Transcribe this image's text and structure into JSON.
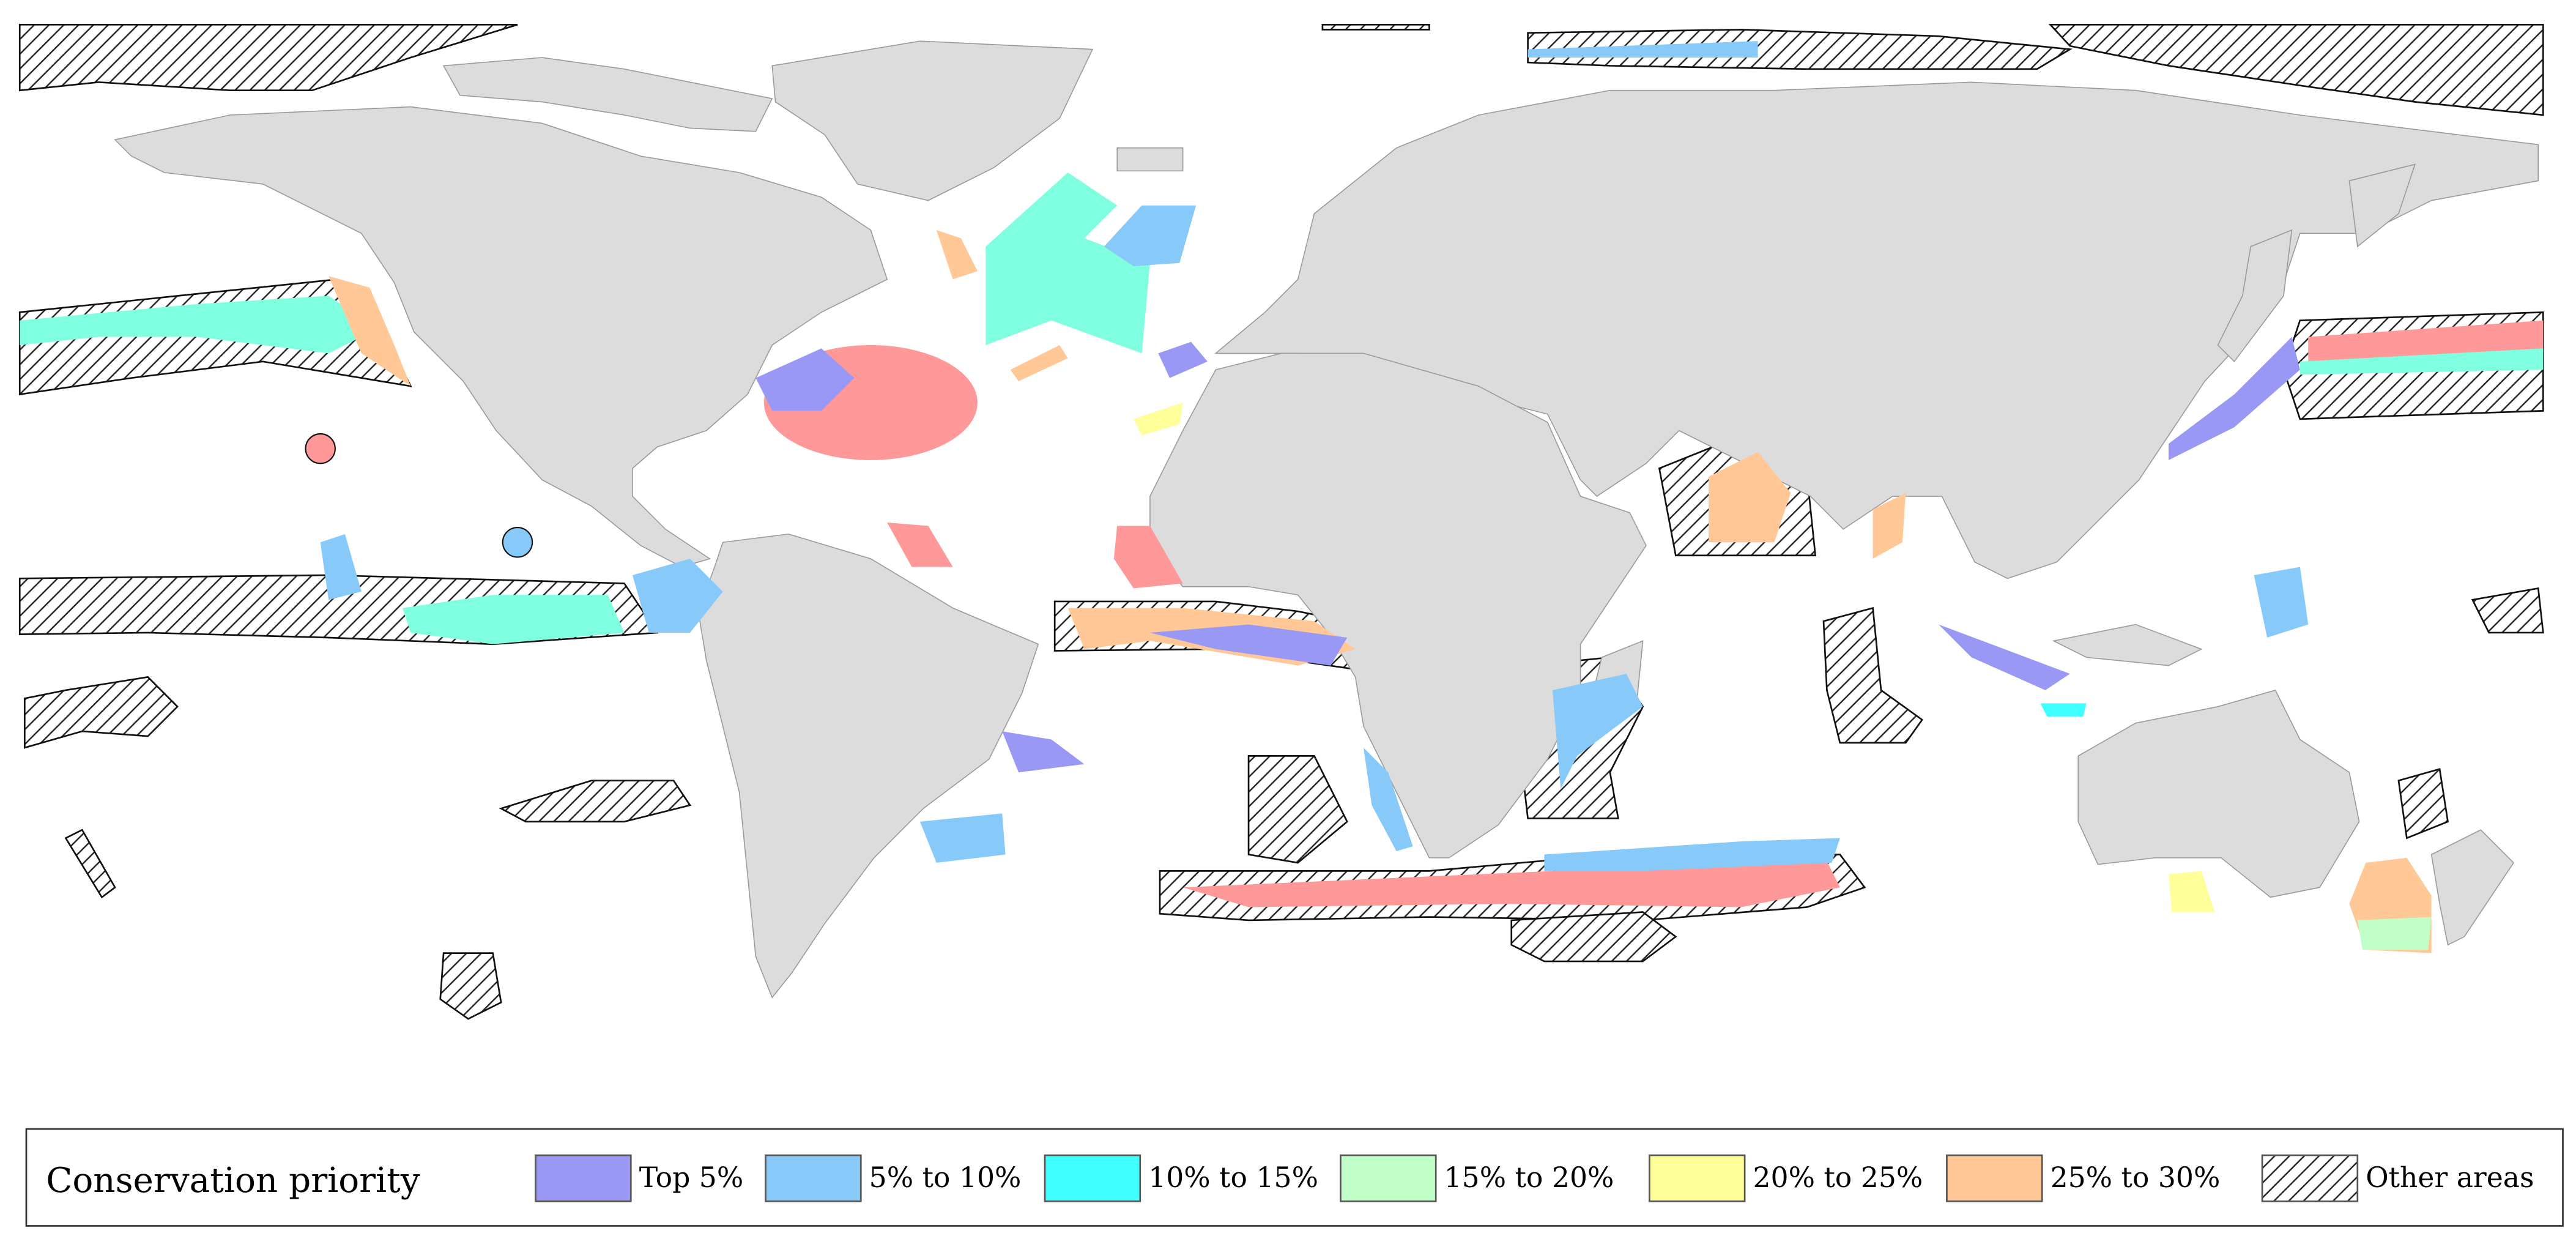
{
  "legend": {
    "title": "Conservation priority",
    "items": [
      {
        "label": "Top 5%",
        "color": "#9999f5"
      },
      {
        "label": "5% to 10%",
        "color": "#87cafa"
      },
      {
        "label": "10% to 15%",
        "color": "#40ffff"
      },
      {
        "label": "15% to 20%",
        "color": "#c0ffc8"
      },
      {
        "label": "20% to 25%",
        "color": "#ffff99"
      },
      {
        "label": "25% to 30%",
        "color": "#ffc896"
      },
      {
        "label": "Other areas",
        "pattern": "hatch"
      }
    ]
  }
}
